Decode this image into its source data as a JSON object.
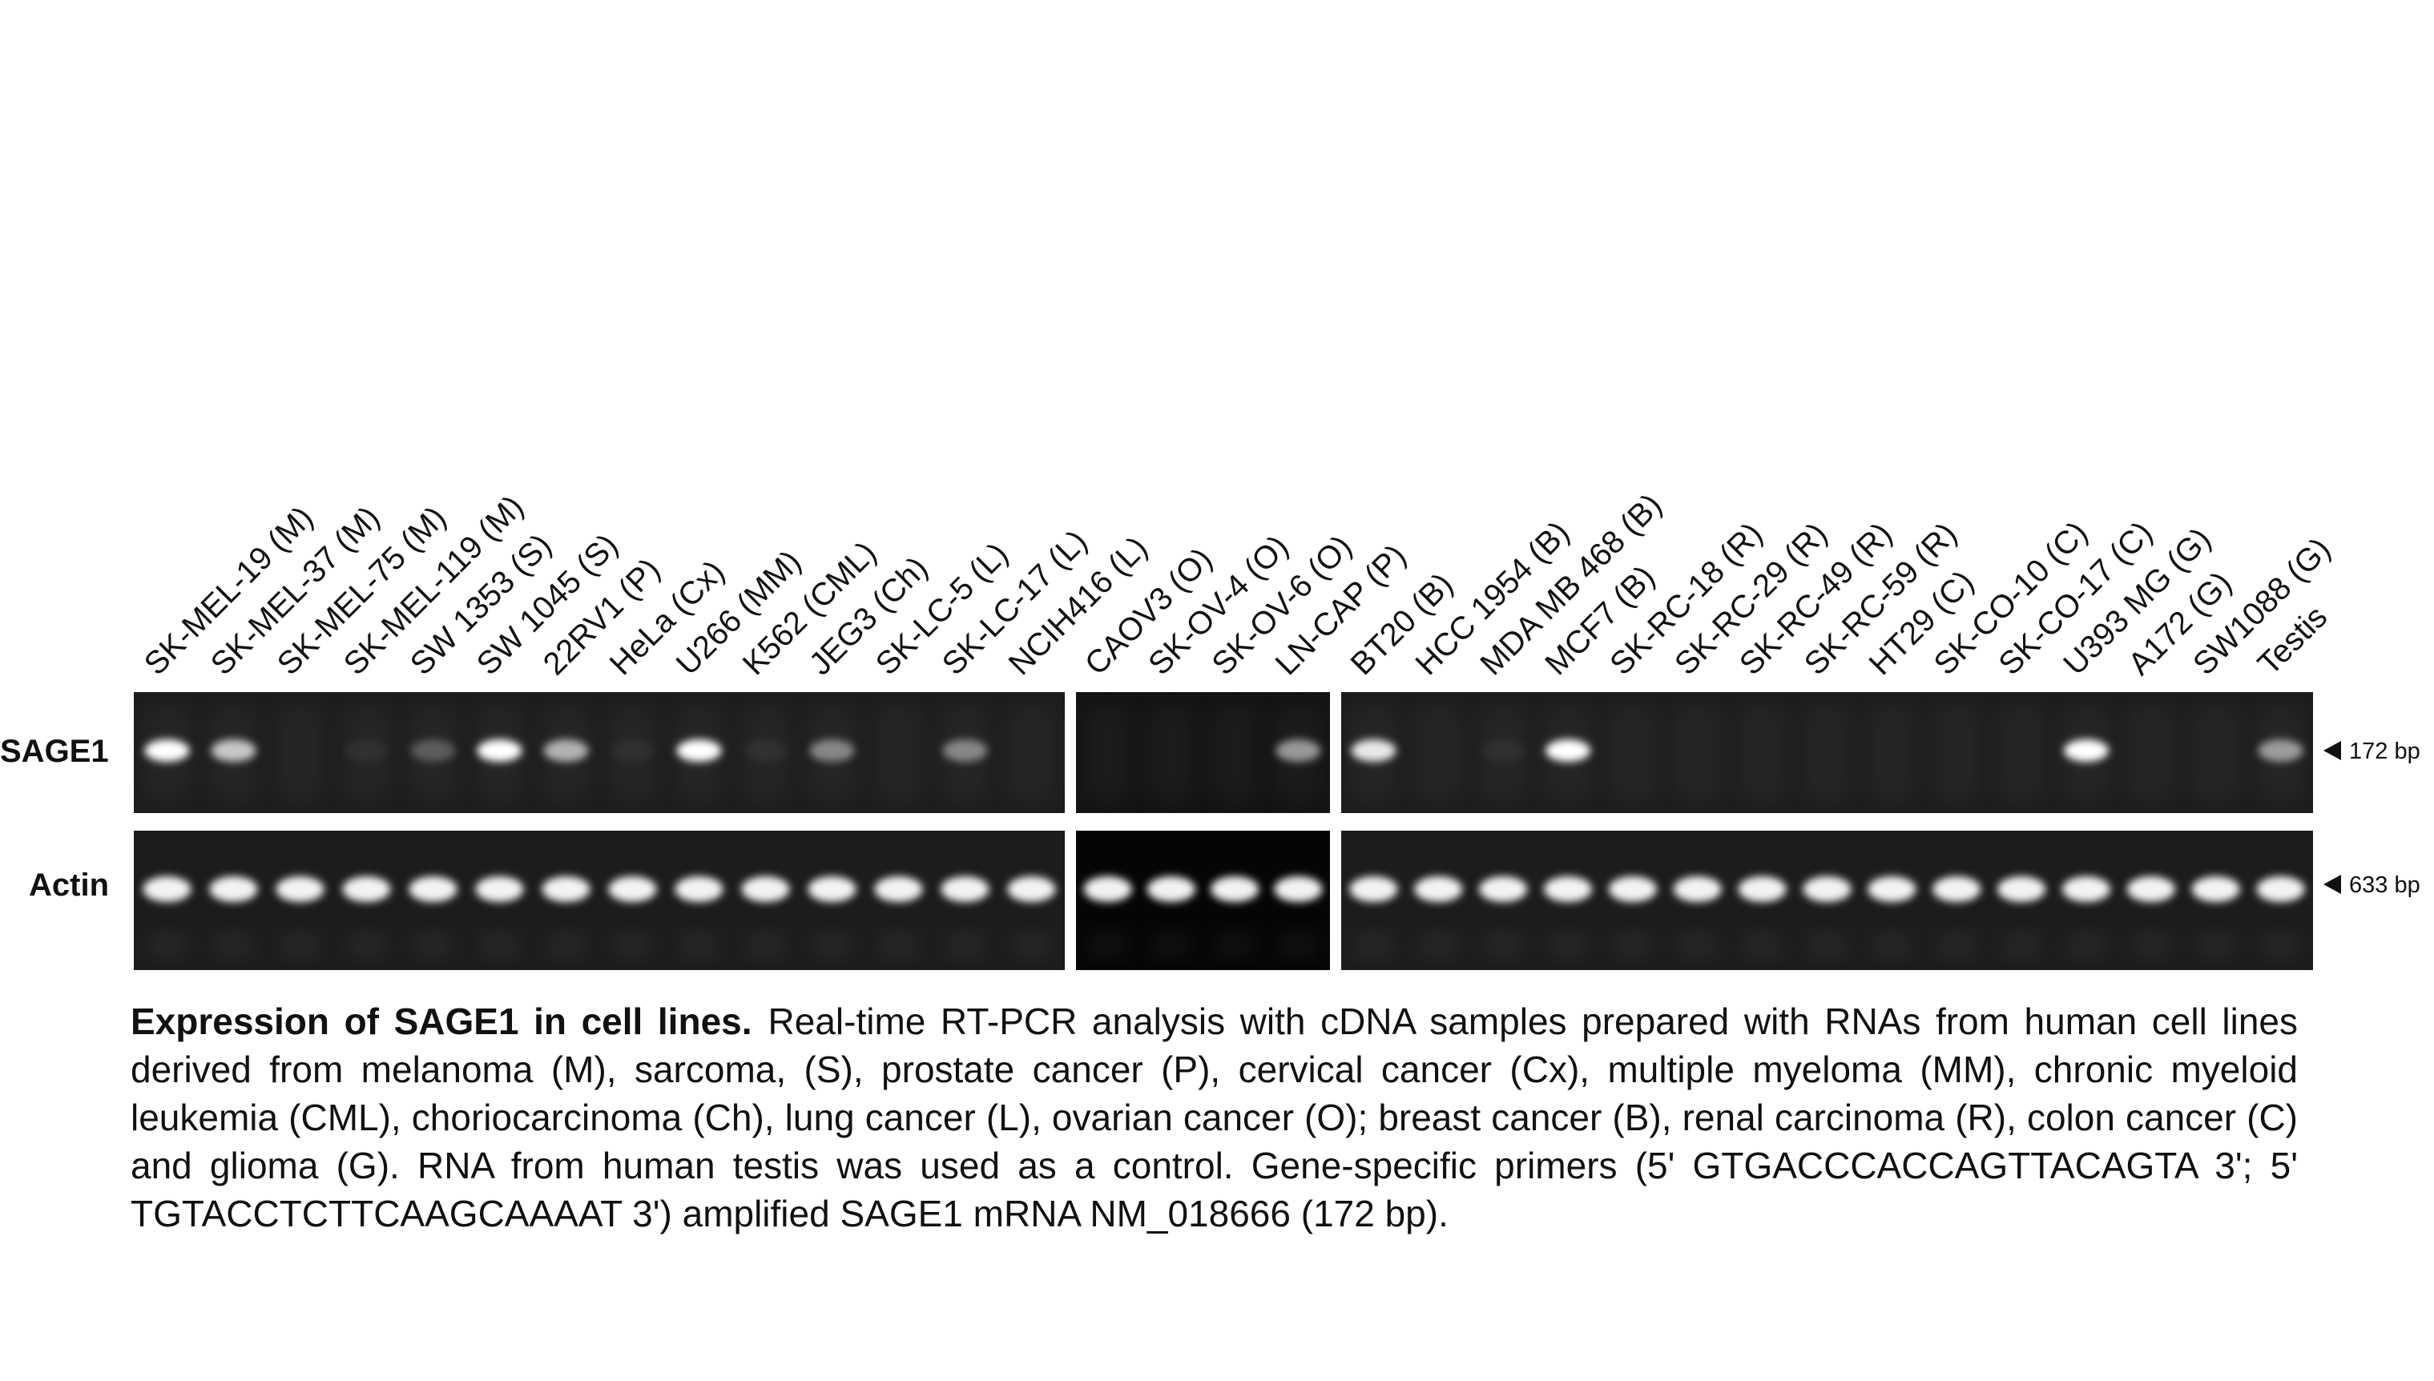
{
  "figure": {
    "lanes": [
      "SK-MEL-19 (M)",
      "SK-MEL-37 (M)",
      "SK-MEL-75 (M)",
      "SK-MEL-119 (M)",
      "SW 1353 (S)",
      "SW 1045 (S)",
      "22RV1 (P)",
      "HeLa (Cx)",
      "U266 (MM)",
      "K562 (CML)",
      "JEG3 (Ch)",
      "SK-LC-5 (L)",
      "SK-LC-17 (L)",
      "NCIH416 (L)",
      "CAOV3 (O)",
      "SK-OV-4 (O)",
      "SK-OV-6 (O)",
      "LN-CAP (P)",
      "BT20 (B)",
      "HCC 1954 (B)",
      "MDA MB 468 (B)",
      "MCF7 (B)",
      "SK-RC-18 (R)",
      "SK-RC-29 (R)",
      "SK-RC-49 (R)",
      "SK-RC-59 (R)",
      "HT29 (C)",
      "SK-CO-10 (C)",
      "SK-CO-17 (C)",
      "U393 MG (G)",
      "A172 (G)",
      "SW1088 (G)",
      "Testis"
    ],
    "rows": [
      {
        "label": "SAGE1",
        "marker": "172 bp"
      },
      {
        "label": "Actin",
        "marker": "633 bp"
      }
    ],
    "caption": {
      "title": "Expression of SAGE1 in cell lines.",
      "text": "Real-time RT-PCR analysis with cDNA samples prepared with RNAs from human cell lines derived from melanoma (M), sarcoma, (S), prostate cancer (P), cervical cancer (Cx), multiple myeloma (MM), chronic myeloid leukemia (CML), choriocarcinoma (Ch), lung cancer (L), ovarian cancer (O); breast cancer (B), renal carcinoma (R), colon cancer (C) and glioma (G). RNA from human testis was used as a control. Gene-specific primers (5' GTGACCCACCAGTTACAGTA 3'; 5' TGTACCTCTTCAAGCAAAAT 3') amplified SAGE1 mRNA NM_018666 (172 bp)."
    }
  }
}
